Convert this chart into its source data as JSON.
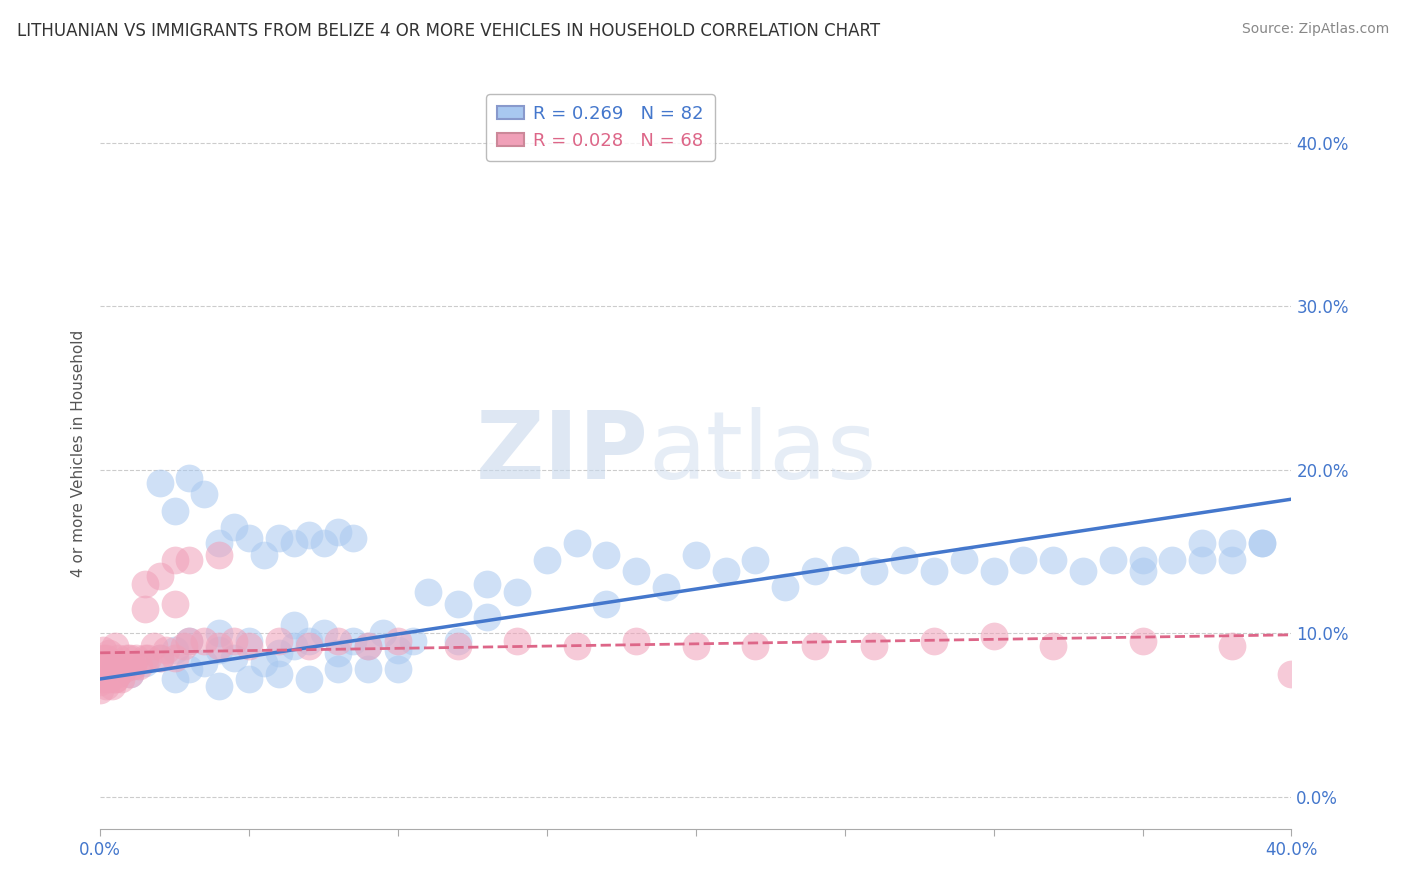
{
  "title": "LITHUANIAN VS IMMIGRANTS FROM BELIZE 4 OR MORE VEHICLES IN HOUSEHOLD CORRELATION CHART",
  "source": "Source: ZipAtlas.com",
  "ylabel": "4 or more Vehicles in Household",
  "yticks": [
    "0.0%",
    "10.0%",
    "20.0%",
    "30.0%",
    "40.0%"
  ],
  "ytick_values": [
    0.0,
    0.1,
    0.2,
    0.3,
    0.4
  ],
  "xlim": [
    0.0,
    0.4
  ],
  "ylim": [
    -0.02,
    0.44
  ],
  "legend_entry1": "R = 0.269   N = 82",
  "legend_entry2": "R = 0.028   N = 68",
  "color_blue": "#a8c8f0",
  "color_pink": "#f0a0b8",
  "color_blue_line": "#4477cc",
  "color_pink_line": "#dd6688",
  "title_fontsize": 12,
  "source_fontsize": 10,
  "label_fontsize": 11,
  "tick_fontsize": 12,
  "blue_x": [
    0.005,
    0.01,
    0.015,
    0.02,
    0.025,
    0.025,
    0.03,
    0.03,
    0.035,
    0.04,
    0.04,
    0.04,
    0.045,
    0.05,
    0.05,
    0.055,
    0.06,
    0.06,
    0.065,
    0.065,
    0.07,
    0.07,
    0.075,
    0.08,
    0.08,
    0.085,
    0.09,
    0.09,
    0.095,
    0.1,
    0.1,
    0.105,
    0.11,
    0.12,
    0.12,
    0.13,
    0.13,
    0.14,
    0.15,
    0.16,
    0.17,
    0.17,
    0.18,
    0.19,
    0.2,
    0.21,
    0.22,
    0.23,
    0.24,
    0.25,
    0.26,
    0.27,
    0.28,
    0.29,
    0.3,
    0.31,
    0.32,
    0.33,
    0.34,
    0.35,
    0.35,
    0.36,
    0.37,
    0.37,
    0.38,
    0.38,
    0.39,
    0.39,
    0.02,
    0.025,
    0.03,
    0.035,
    0.04,
    0.045,
    0.05,
    0.055,
    0.06,
    0.065,
    0.07,
    0.075,
    0.08,
    0.085
  ],
  "blue_y": [
    0.08,
    0.075,
    0.082,
    0.085,
    0.072,
    0.09,
    0.078,
    0.095,
    0.082,
    0.068,
    0.09,
    0.1,
    0.085,
    0.072,
    0.095,
    0.082,
    0.075,
    0.088,
    0.092,
    0.105,
    0.072,
    0.095,
    0.1,
    0.078,
    0.088,
    0.095,
    0.078,
    0.092,
    0.1,
    0.078,
    0.09,
    0.095,
    0.125,
    0.118,
    0.095,
    0.13,
    0.11,
    0.125,
    0.145,
    0.155,
    0.148,
    0.118,
    0.138,
    0.128,
    0.148,
    0.138,
    0.145,
    0.128,
    0.138,
    0.145,
    0.138,
    0.145,
    0.138,
    0.145,
    0.138,
    0.145,
    0.145,
    0.138,
    0.145,
    0.138,
    0.145,
    0.145,
    0.145,
    0.155,
    0.145,
    0.155,
    0.155,
    0.155,
    0.192,
    0.175,
    0.195,
    0.185,
    0.155,
    0.165,
    0.158,
    0.148,
    0.158,
    0.155,
    0.16,
    0.155,
    0.162,
    0.158
  ],
  "pink_x": [
    0.0,
    0.0,
    0.0,
    0.001,
    0.001,
    0.002,
    0.002,
    0.003,
    0.003,
    0.004,
    0.005,
    0.005,
    0.005,
    0.006,
    0.006,
    0.007,
    0.007,
    0.008,
    0.009,
    0.01,
    0.01,
    0.011,
    0.012,
    0.013,
    0.015,
    0.015,
    0.015,
    0.016,
    0.018,
    0.02,
    0.02,
    0.022,
    0.025,
    0.025,
    0.025,
    0.028,
    0.03,
    0.03,
    0.035,
    0.04,
    0.04,
    0.045,
    0.05,
    0.06,
    0.07,
    0.08,
    0.09,
    0.1,
    0.12,
    0.14,
    0.16,
    0.18,
    0.2,
    0.22,
    0.24,
    0.26,
    0.28,
    0.3,
    0.32,
    0.35,
    0.38,
    0.4,
    0.0,
    0.001,
    0.002,
    0.003,
    0.004,
    0.005
  ],
  "pink_y": [
    0.08,
    0.075,
    0.07,
    0.085,
    0.09,
    0.078,
    0.085,
    0.075,
    0.088,
    0.082,
    0.072,
    0.082,
    0.092,
    0.075,
    0.085,
    0.072,
    0.082,
    0.078,
    0.085,
    0.075,
    0.085,
    0.08,
    0.085,
    0.08,
    0.085,
    0.115,
    0.13,
    0.085,
    0.092,
    0.085,
    0.135,
    0.09,
    0.085,
    0.118,
    0.145,
    0.092,
    0.095,
    0.145,
    0.095,
    0.092,
    0.148,
    0.095,
    0.092,
    0.095,
    0.092,
    0.095,
    0.092,
    0.095,
    0.092,
    0.095,
    0.092,
    0.095,
    0.092,
    0.092,
    0.092,
    0.092,
    0.095,
    0.098,
    0.092,
    0.095,
    0.092,
    0.075,
    0.065,
    0.072,
    0.068,
    0.072,
    0.068,
    0.072
  ],
  "blue_line_x": [
    0.0,
    0.4
  ],
  "blue_line_y_start": 0.072,
  "blue_line_y_end": 0.182,
  "pink_line_x": [
    0.0,
    0.4
  ],
  "pink_line_y_start": 0.088,
  "pink_line_y_end": 0.099,
  "watermark_zip": "ZIP",
  "watermark_atlas": "atlas",
  "background_color": "#ffffff",
  "grid_color": "#cccccc"
}
